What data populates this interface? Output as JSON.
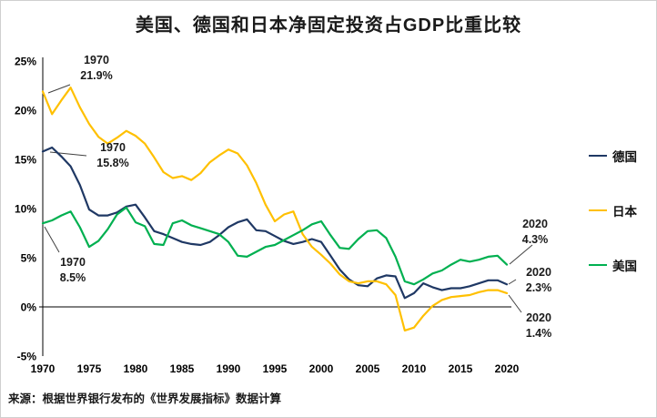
{
  "window": {
    "background": "#ffffff",
    "border_color": "#cfcfcf"
  },
  "chart_data": {
    "type": "line",
    "title": "美国、德国和日本净固定投资占GDP比重比较",
    "source_note": "来源：根据世界银行发布的《世界发展指标》数据计算",
    "legend_position": "right",
    "grid": false,
    "x_axis": {
      "range": [
        1970,
        2020
      ],
      "tick_values": [
        1970,
        1975,
        1980,
        1985,
        1990,
        1995,
        2000,
        2005,
        2010,
        2015,
        2020
      ],
      "tick_labels": [
        "1970",
        "1975",
        "1980",
        "1985",
        "1990",
        "1995",
        "2000",
        "2005",
        "2010",
        "2015",
        "2020"
      ]
    },
    "y_axis": {
      "range": [
        -5,
        25
      ],
      "unit": "%",
      "tick_values": [
        25,
        20,
        15,
        10,
        5,
        0,
        -5
      ],
      "tick_labels": [
        "25%",
        "20%",
        "15%",
        "10%",
        "5%",
        "0%",
        "-5%"
      ]
    },
    "years": [
      1970,
      1971,
      1972,
      1973,
      1974,
      1975,
      1976,
      1977,
      1978,
      1979,
      1980,
      1981,
      1982,
      1983,
      1984,
      1985,
      1986,
      1987,
      1988,
      1989,
      1990,
      1991,
      1992,
      1993,
      1994,
      1995,
      1996,
      1997,
      1998,
      1999,
      2000,
      2001,
      2002,
      2003,
      2004,
      2005,
      2006,
      2007,
      2008,
      2009,
      2010,
      2011,
      2012,
      2013,
      2014,
      2015,
      2016,
      2017,
      2018,
      2019,
      2020
    ],
    "series": [
      {
        "id": "germany",
        "name": "德国",
        "color": "#1F3864",
        "values": [
          15.8,
          16.2,
          15.3,
          14.3,
          12.4,
          9.9,
          9.3,
          9.3,
          9.6,
          10.2,
          10.4,
          9.1,
          7.7,
          7.4,
          7.0,
          6.6,
          6.4,
          6.3,
          6.6,
          7.3,
          8.1,
          8.6,
          8.9,
          7.8,
          7.7,
          7.2,
          6.7,
          6.4,
          6.6,
          6.9,
          6.6,
          5.2,
          3.8,
          2.8,
          2.2,
          2.1,
          2.9,
          3.2,
          3.1,
          0.9,
          1.4,
          2.4,
          2.0,
          1.7,
          1.9,
          1.9,
          2.1,
          2.4,
          2.7,
          2.7,
          2.3
        ]
      },
      {
        "id": "japan",
        "name": "日本",
        "color": "#FFC000",
        "values": [
          21.9,
          19.6,
          21.0,
          22.3,
          20.3,
          18.6,
          17.3,
          16.6,
          17.2,
          17.9,
          17.4,
          16.6,
          15.2,
          13.7,
          13.1,
          13.3,
          12.9,
          13.6,
          14.7,
          15.4,
          16.0,
          15.6,
          14.4,
          12.6,
          10.4,
          8.7,
          9.4,
          9.7,
          7.4,
          6.1,
          5.3,
          4.4,
          3.3,
          2.6,
          2.4,
          2.6,
          2.6,
          2.3,
          1.2,
          -2.4,
          -2.1,
          -0.9,
          0.1,
          0.7,
          1.0,
          1.1,
          1.2,
          1.5,
          1.7,
          1.7,
          1.4
        ]
      },
      {
        "id": "us",
        "name": "美国",
        "color": "#00B050",
        "values": [
          8.5,
          8.8,
          9.3,
          9.7,
          8.1,
          6.1,
          6.7,
          7.9,
          9.4,
          10.1,
          8.6,
          8.2,
          6.4,
          6.3,
          8.5,
          8.8,
          8.3,
          8.0,
          7.7,
          7.4,
          6.6,
          5.2,
          5.1,
          5.6,
          6.1,
          6.3,
          6.8,
          7.3,
          7.8,
          8.4,
          8.7,
          7.3,
          6.0,
          5.9,
          6.9,
          7.7,
          7.8,
          7.0,
          5.1,
          2.6,
          2.3,
          2.8,
          3.4,
          3.7,
          4.3,
          4.8,
          4.6,
          4.8,
          5.1,
          5.2,
          4.3
        ]
      }
    ],
    "annotations": [
      {
        "id": "japan-1970",
        "line1": "1970",
        "line2": "21.9%",
        "series": "日本",
        "year": 1970,
        "value": 21.9
      },
      {
        "id": "germany-1970",
        "line1": "1970",
        "line2": "15.8%",
        "series": "德国",
        "year": 1970,
        "value": 15.8
      },
      {
        "id": "us-1970",
        "line1": "1970",
        "line2": "8.5%",
        "series": "美国",
        "year": 1970,
        "value": 8.5
      },
      {
        "id": "us-2020",
        "line1": "2020",
        "line2": "4.3%",
        "series": "美国",
        "year": 2020,
        "value": 4.3
      },
      {
        "id": "germany-2020",
        "line1": "2020",
        "line2": "2.3%",
        "series": "德国",
        "year": 2020,
        "value": 2.3
      },
      {
        "id": "japan-2020",
        "line1": "2020",
        "line2": "1.4%",
        "series": "日本",
        "year": 2020,
        "value": 1.4
      }
    ]
  }
}
